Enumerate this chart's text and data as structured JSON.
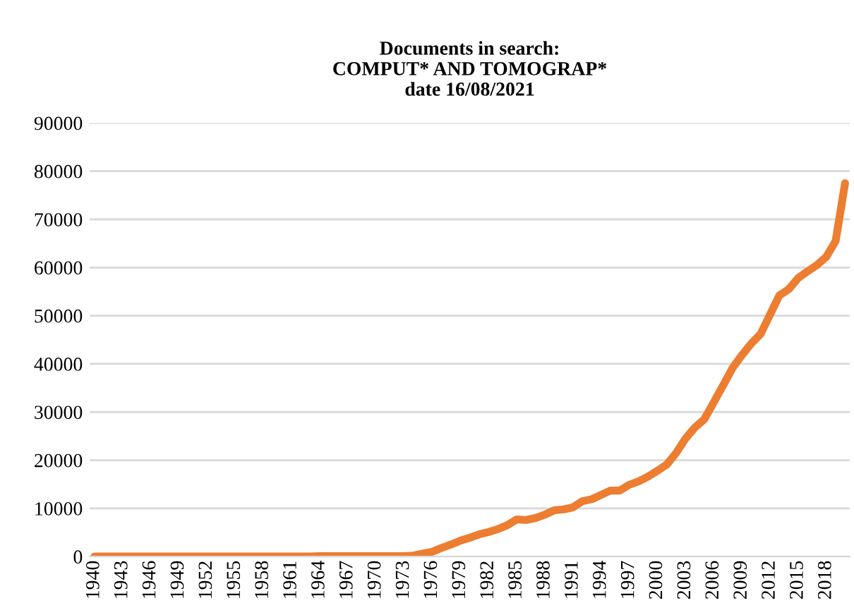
{
  "chart_data": {
    "type": "line",
    "title": "Documents in search:\nCOMPUT* AND TOMOGRAP*\ndate 16/08/2021",
    "categories": [
      "1940",
      null,
      null,
      "1943",
      null,
      null,
      "1946",
      null,
      null,
      "1949",
      null,
      null,
      "1952",
      null,
      null,
      "1955",
      null,
      null,
      "1958",
      null,
      null,
      "1961",
      null,
      null,
      "1964",
      null,
      null,
      "1967",
      null,
      null,
      "1970",
      null,
      null,
      "1973",
      null,
      null,
      "1976",
      null,
      null,
      "1979",
      null,
      null,
      "1982",
      null,
      null,
      "1985",
      null,
      null,
      "1988",
      null,
      null,
      "1991",
      null,
      null,
      "1994",
      null,
      null,
      "1997",
      null,
      null,
      "2000",
      null,
      null,
      "2003",
      null,
      null,
      "2006",
      null,
      null,
      "2009",
      null,
      null,
      "2012",
      null,
      null,
      "2015",
      null,
      null,
      "2018",
      null,
      null
    ],
    "series": [
      {
        "color": "#ed7d31",
        "values": [
          0,
          0,
          0,
          0,
          0,
          0,
          0,
          0,
          0,
          0,
          0,
          0,
          0,
          0,
          0,
          0,
          0,
          0,
          0,
          0,
          0,
          0,
          0,
          0,
          100,
          100,
          100,
          100,
          100,
          100,
          100,
          100,
          100,
          100,
          200,
          600,
          1000,
          1800,
          2500,
          3300,
          3900,
          4600,
          5100,
          5700,
          6500,
          7700,
          7600,
          8000,
          8700,
          9600,
          9800,
          10200,
          11500,
          11900,
          12800,
          13700,
          13700,
          14900,
          15600,
          16600,
          17800,
          19100,
          21500,
          24500,
          26800,
          28500,
          32000,
          35500,
          39100,
          41800,
          44200,
          46200,
          50200,
          54200,
          55500,
          57800,
          59200,
          60500,
          62200,
          65500,
          77500
        ]
      }
    ],
    "ylim": [
      0,
      90000
    ],
    "yticks": [
      0,
      10000,
      20000,
      30000,
      40000,
      50000,
      60000,
      70000,
      80000,
      90000
    ],
    "grid": "y",
    "marker": "none",
    "line_style": "solid",
    "legend": false
  }
}
